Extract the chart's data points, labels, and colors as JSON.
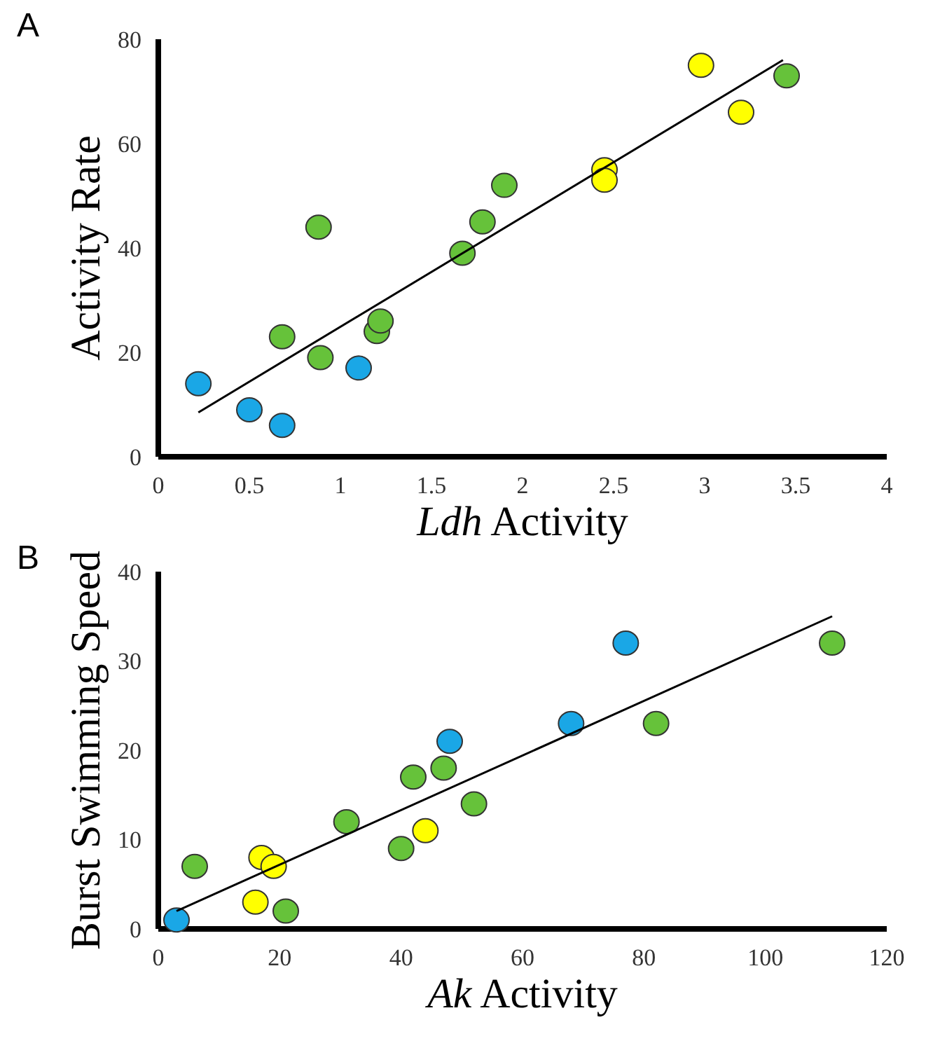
{
  "chart_data": [
    {
      "type": "scatter",
      "title": "A",
      "xlabel": "Ldh Activity",
      "ylabel": "Activity Rate",
      "xlim": [
        0,
        4
      ],
      "ylim": [
        0,
        80
      ],
      "xticks": [
        0,
        0.5,
        1,
        1.5,
        2,
        2.5,
        3,
        3.5,
        4
      ],
      "yticks": [
        0,
        20,
        40,
        60,
        80
      ],
      "marker": "circle",
      "grid": false,
      "series": [
        {
          "color": "#1aa7e6",
          "x": [
            0.22,
            0.5,
            0.68,
            1.1
          ],
          "values": [
            14,
            9,
            6,
            17
          ]
        },
        {
          "color": "#66c23a",
          "x": [
            0.68,
            0.88,
            0.89,
            1.2,
            1.22,
            1.67,
            1.78,
            1.9,
            3.45
          ],
          "values": [
            23,
            44,
            19,
            24,
            26,
            39,
            45,
            52,
            73
          ]
        },
        {
          "color": "#ffff00",
          "x": [
            2.45,
            2.45,
            2.98,
            3.2
          ],
          "values": [
            55,
            53,
            75,
            66
          ]
        },
        {
          "type": "line",
          "marker": "none",
          "color": "#000000",
          "x": [
            0.22,
            3.43
          ],
          "values": [
            8.5,
            76
          ]
        }
      ]
    },
    {
      "type": "scatter",
      "title": "B",
      "xlabel": "Ak Activity",
      "ylabel": "Burst Swimming Speed",
      "xlim": [
        0,
        120
      ],
      "ylim": [
        0,
        40
      ],
      "xticks": [
        0,
        20,
        40,
        60,
        80,
        100,
        120
      ],
      "yticks": [
        0,
        10,
        20,
        30,
        40
      ],
      "marker": "circle",
      "grid": false,
      "series": [
        {
          "color": "#1aa7e6",
          "x": [
            3,
            48,
            68,
            77
          ],
          "values": [
            1,
            21,
            23,
            32
          ]
        },
        {
          "color": "#66c23a",
          "x": [
            6,
            21,
            31,
            40,
            42,
            47,
            52,
            82,
            111
          ],
          "values": [
            7,
            2,
            12,
            9,
            17,
            18,
            14,
            23,
            32
          ]
        },
        {
          "color": "#ffff00",
          "x": [
            16,
            17,
            19,
            44
          ],
          "values": [
            3,
            8,
            7,
            11
          ]
        },
        {
          "type": "line",
          "marker": "none",
          "color": "#000000",
          "x": [
            3,
            111
          ],
          "values": [
            2,
            35
          ]
        }
      ]
    }
  ]
}
